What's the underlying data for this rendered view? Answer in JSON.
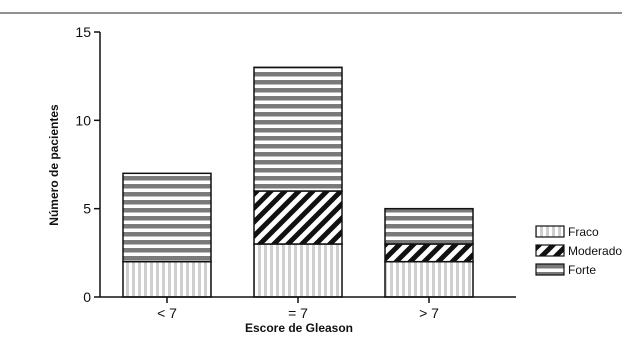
{
  "chart_data": {
    "type": "bar",
    "stacked": true,
    "categories": [
      "< 7",
      "= 7",
      "> 7"
    ],
    "series": [
      {
        "name": "Fraco",
        "values": [
          2,
          3,
          2
        ]
      },
      {
        "name": "Moderado",
        "values": [
          0,
          3,
          1
        ]
      },
      {
        "name": "Forte",
        "values": [
          5,
          7,
          2
        ]
      }
    ],
    "xlabel": "Escore de Gleason",
    "ylabel": "Número de pacientes",
    "ylim": [
      0,
      15
    ],
    "yticks": [
      0,
      5,
      10,
      15
    ],
    "grid": false,
    "legend_position": "right"
  }
}
